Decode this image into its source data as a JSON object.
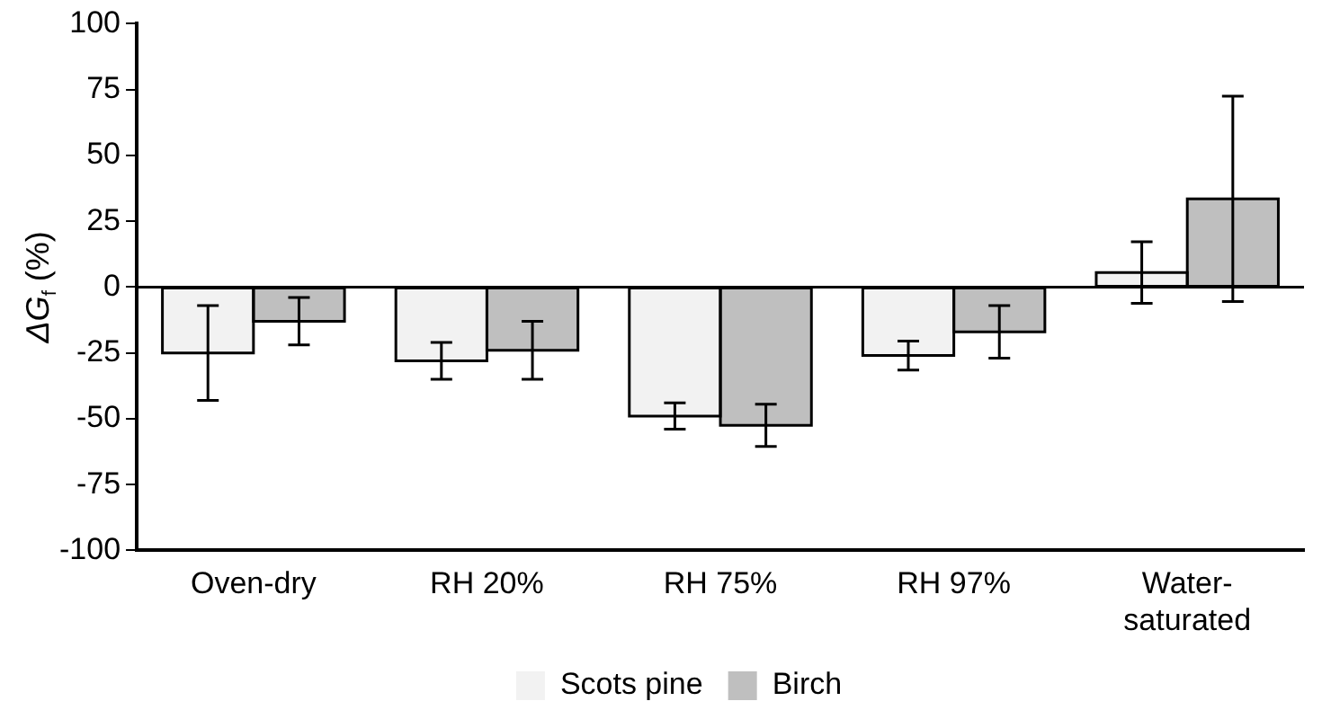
{
  "chart_data": {
    "type": "bar",
    "ylabel": "ΔG$_{f}$ (%)",
    "categories": [
      "Oven-dry",
      "RH 20%",
      "RH 75%",
      "RH 97%",
      "Water-saturated"
    ],
    "series": [
      {
        "name": "Scots pine",
        "color": "#f2f2f2",
        "values": [
          -25,
          -28,
          -49,
          -26,
          5.5
        ],
        "errors": [
          18,
          7,
          5,
          5.5,
          11.7
        ]
      },
      {
        "name": "Birch",
        "color": "#bfbfbf",
        "values": [
          -13,
          -24,
          -52.5,
          -17,
          33.5
        ],
        "errors": [
          9,
          11,
          8,
          10,
          39
        ]
      }
    ],
    "ylim": [
      -100,
      100
    ],
    "yticks": [
      -100,
      -75,
      -50,
      -25,
      0,
      25,
      50,
      75,
      100
    ],
    "ref_lines": [
      {
        "axis": "y",
        "value": 0
      }
    ],
    "grid": false,
    "legend": "bottom"
  }
}
